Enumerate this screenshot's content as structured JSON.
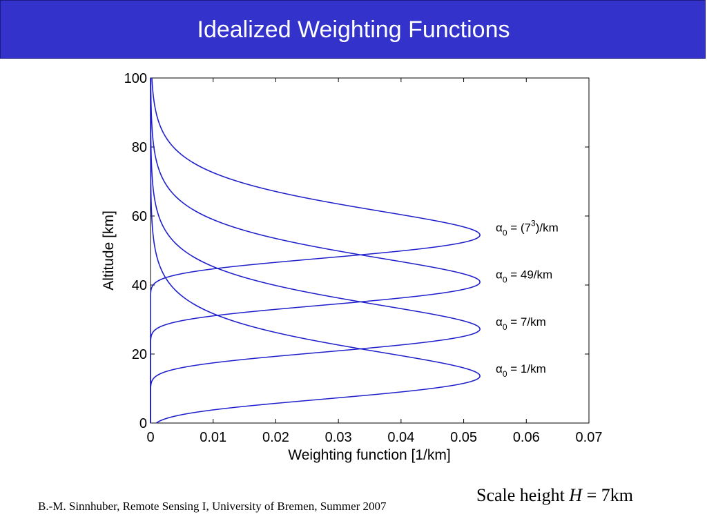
{
  "slide": {
    "title": "Idealized Weighting Functions",
    "scale_height_prefix": "Scale height",
    "scale_height_var": "H",
    "scale_height_eq": "=",
    "scale_height_value": "7km",
    "citation": "B.-M. Sinnhuber, Remote Sensing I, University of Bremen, Summer 2007"
  },
  "colors": {
    "title_bar": "#3333cc",
    "curve": "#1f1fcc",
    "axis": "#000000"
  },
  "chart_data": {
    "type": "line",
    "xlabel": "Weighting function [1/km]",
    "ylabel": "Altitude [km]",
    "xlim": [
      0,
      0.07
    ],
    "ylim": [
      0,
      100
    ],
    "xticks": [
      0,
      0.01,
      0.02,
      0.03,
      0.04,
      0.05,
      0.06,
      0.07
    ],
    "xtick_labels": [
      "0",
      "0.01",
      "0.02",
      "0.03",
      "0.04",
      "0.05",
      "0.06",
      "0.07"
    ],
    "yticks": [
      0,
      20,
      40,
      60,
      80,
      100
    ],
    "ytick_labels": [
      "0",
      "20",
      "40",
      "60",
      "80",
      "100"
    ],
    "grid": false,
    "scale_height_km": 7,
    "peak_weighting": 0.0526,
    "series": [
      {
        "name": "α0 = (7³)/km",
        "label_prefix": "α",
        "label_sub": "0",
        "label_mid": " = (7",
        "label_sup": "3",
        "label_suffix": ")/km",
        "alpha0_per_km": 343,
        "peak_altitude_km": 54.5
      },
      {
        "name": "α0 = 49/km",
        "label_prefix": "α",
        "label_sub": "0",
        "label_mid": " = 49/km",
        "label_sup": "",
        "label_suffix": "",
        "alpha0_per_km": 49,
        "peak_altitude_km": 40.9
      },
      {
        "name": "α0 = 7/km",
        "label_prefix": "α",
        "label_sub": "0",
        "label_mid": " = 7/km",
        "label_sup": "",
        "label_suffix": "",
        "alpha0_per_km": 7,
        "peak_altitude_km": 27.2
      },
      {
        "name": "α0 = 1/km",
        "label_prefix": "α",
        "label_sub": "0",
        "label_mid": " = 1/km",
        "label_sup": "",
        "label_suffix": "",
        "alpha0_per_km": 1,
        "peak_altitude_km": 13.6
      }
    ]
  }
}
